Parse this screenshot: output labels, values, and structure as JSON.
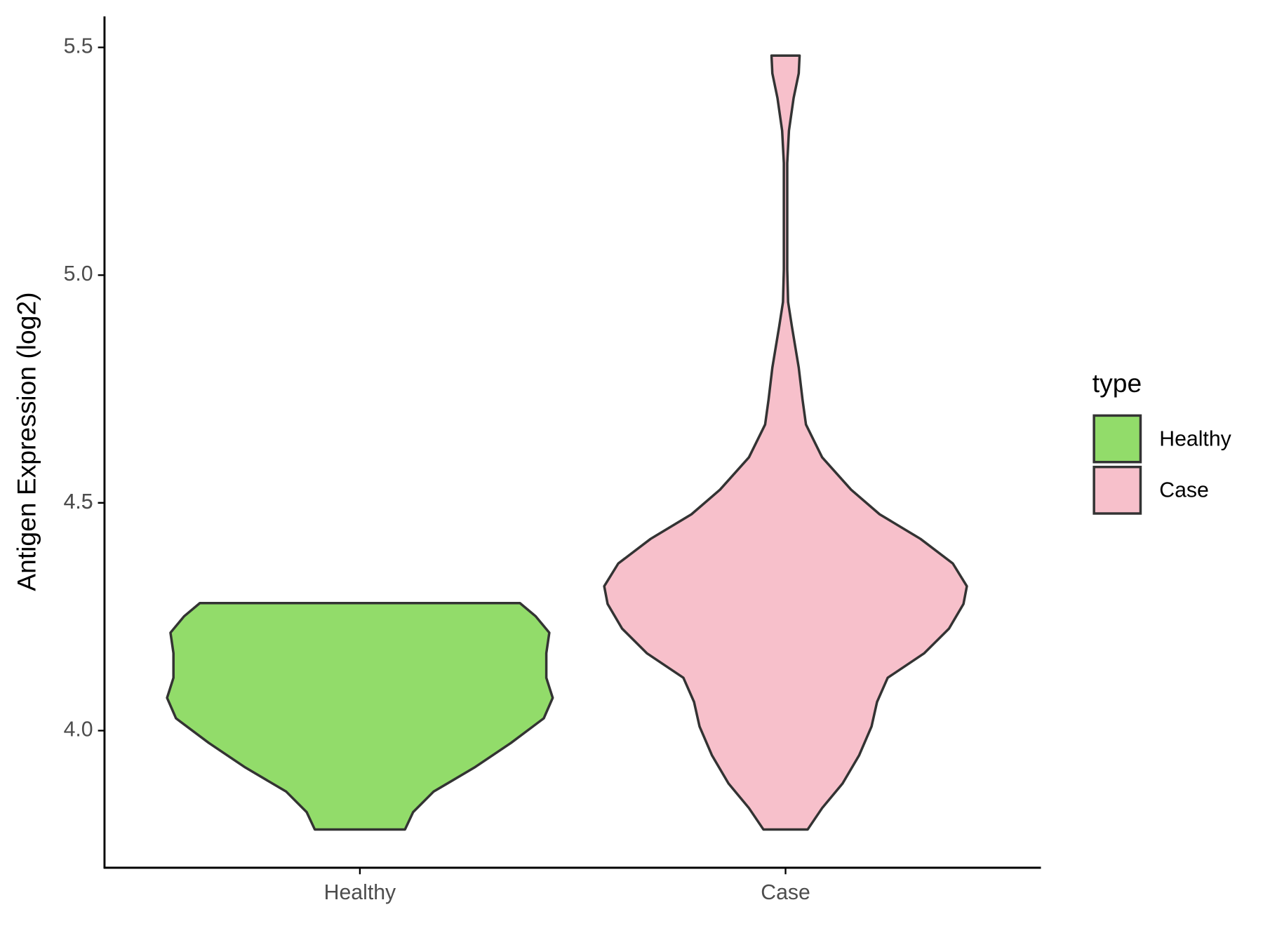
{
  "chart_data": {
    "type": "violin",
    "y_label": "Antigen Expression (log2)",
    "categories": [
      "Healthy",
      "Case"
    ],
    "ylim": [
      3.699,
      5.568
    ],
    "yticks": [
      {
        "value": 4.0,
        "label": "4.0"
      },
      4.5,
      {
        "value": 5.0,
        "label": "5.0"
      },
      4.5,
      5.5
    ],
    "legend_title": "type",
    "legend": "right",
    "series": [
      {
        "name": "Healthy",
        "color": "#92dc6a",
        "y": [
          3.783,
          3.821,
          3.866,
          3.919,
          3.973,
          4.027,
          4.072,
          4.116,
          4.17,
          4.215,
          4.251,
          4.28
        ],
        "half_width": [
          0.106,
          0.125,
          0.173,
          0.269,
          0.355,
          0.432,
          0.453,
          0.438,
          0.438,
          0.445,
          0.413,
          0.376
        ]
      },
      {
        "name": "Case",
        "color": "#f7c0cb",
        "y": [
          3.783,
          3.83,
          3.884,
          3.946,
          4.009,
          4.063,
          4.116,
          4.17,
          4.224,
          4.278,
          4.317,
          4.367,
          4.421,
          4.475,
          4.529,
          4.6,
          4.672,
          4.726,
          4.797,
          4.887,
          4.941,
          5.013,
          5.156,
          5.246,
          5.317,
          5.389,
          5.443,
          5.482
        ],
        "half_width": [
          0.052,
          0.086,
          0.134,
          0.173,
          0.202,
          0.215,
          0.24,
          0.326,
          0.384,
          0.418,
          0.426,
          0.393,
          0.317,
          0.221,
          0.154,
          0.086,
          0.048,
          0.04,
          0.031,
          0.015,
          0.006,
          0.004,
          0.004,
          0.004,
          0.008,
          0.019,
          0.031,
          0.033
        ]
      }
    ]
  }
}
